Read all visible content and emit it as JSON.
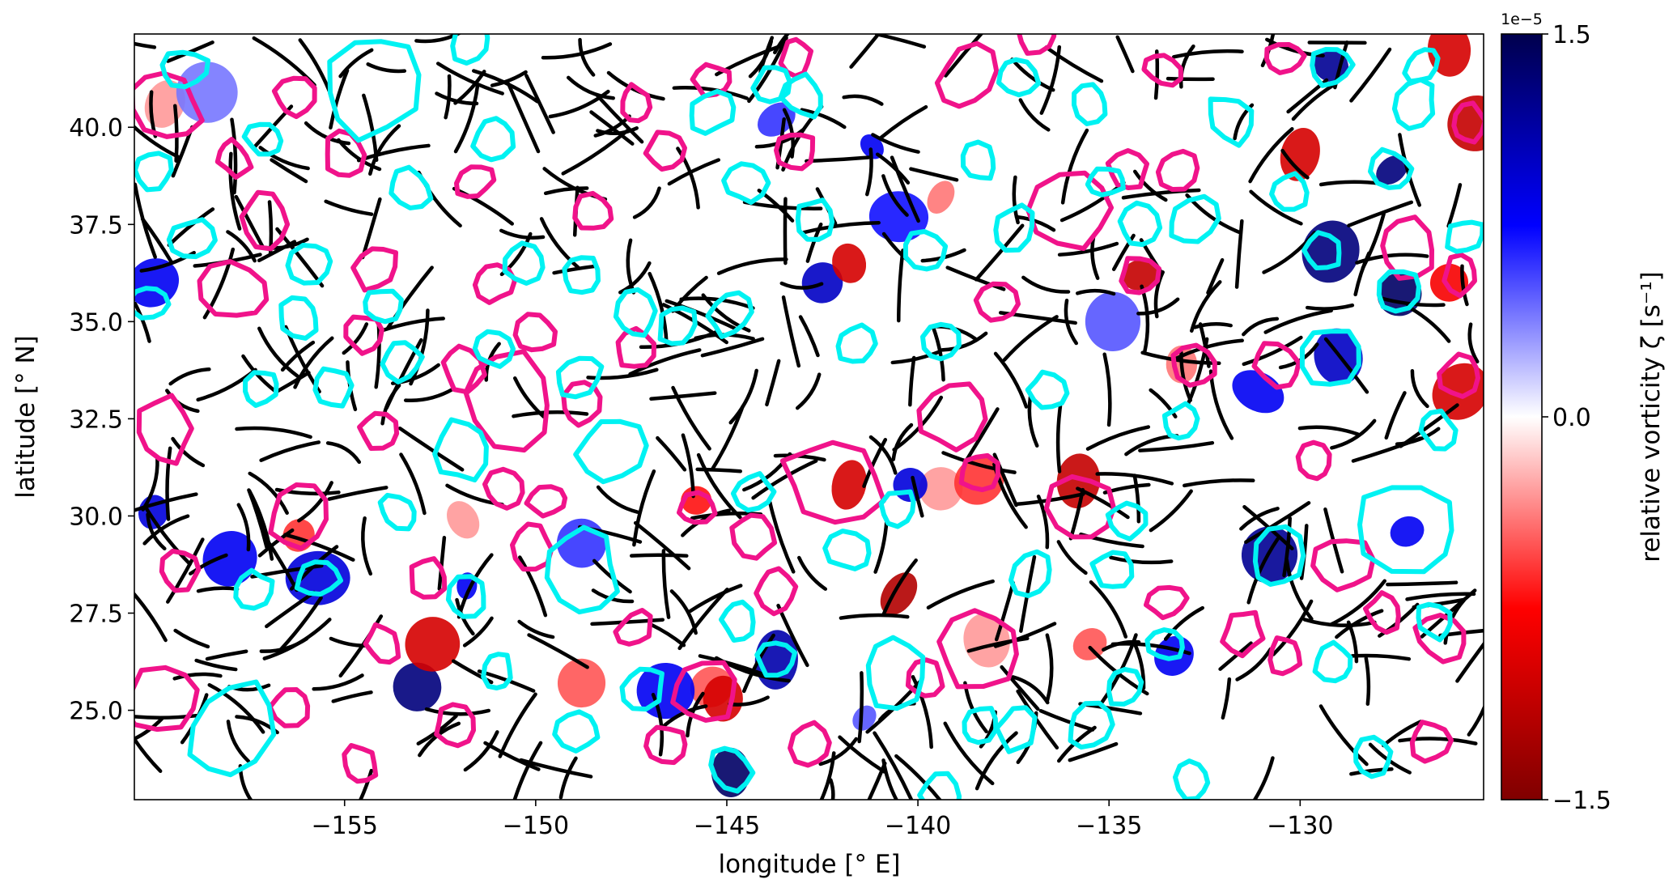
{
  "chart_data": {
    "type": "heatmap",
    "title": "",
    "xlabel": "longitude [° E]",
    "ylabel": "latitude [° N]",
    "xlim": [
      -160.5,
      -125.2
    ],
    "ylim": [
      22.7,
      42.4
    ],
    "xticks": [
      -155,
      -150,
      -145,
      -140,
      -135,
      -130
    ],
    "xtick_labels": [
      "−155",
      "−150",
      "−145",
      "−140",
      "−135",
      "−130"
    ],
    "yticks": [
      25.0,
      27.5,
      30.0,
      32.5,
      35.0,
      37.5,
      40.0
    ],
    "ytick_labels": [
      "25.0",
      "27.5",
      "30.0",
      "32.5",
      "35.0",
      "37.5",
      "40.0"
    ],
    "grid": false,
    "colorbar": {
      "label": "relative vorticity ζ [s⁻¹]",
      "offset_text": "1e−5",
      "range": [
        -1.5,
        1.5
      ],
      "ticks": [
        1.5,
        0.0,
        -1.5
      ],
      "tick_labels": [
        "1.5",
        "0.0",
        "−1.5"
      ],
      "colormap": "seismic (blue positive, red negative)"
    },
    "colors": {
      "cyclonic_contour": "#00f2f2",
      "anticyclonic_contour": "#f0138a",
      "streamlines": "#000000"
    },
    "cyan_contours_lonlat": [
      [
        -154.3,
        41.1,
        1.2
      ],
      [
        -151.7,
        42.2
      ],
      [
        -159.2,
        41.5
      ],
      [
        -157.1,
        39.7
      ],
      [
        -160.0,
        38.9
      ],
      [
        -159.0,
        37.1
      ],
      [
        -155.9,
        36.5
      ],
      [
        -160.1,
        35.5
      ],
      [
        -156.2,
        35.1
      ],
      [
        -154.0,
        35.4
      ],
      [
        -153.3,
        38.4
      ],
      [
        -151.1,
        39.7
      ],
      [
        -150.3,
        36.5
      ],
      [
        -151.1,
        34.3
      ],
      [
        -153.5,
        34.0
      ],
      [
        -155.3,
        33.3
      ],
      [
        -157.2,
        33.3
      ],
      [
        -151.9,
        31.7,
        0.8
      ],
      [
        -148.9,
        33.6
      ],
      [
        -148.8,
        36.2
      ],
      [
        -147.4,
        35.2
      ],
      [
        -148.0,
        31.7,
        0.9
      ],
      [
        -148.8,
        28.6,
        0.9
      ],
      [
        -153.6,
        30.1
      ],
      [
        -155.7,
        28.4
      ],
      [
        -157.4,
        28.1
      ],
      [
        -151.8,
        27.9
      ],
      [
        -151.0,
        26.0
      ],
      [
        -148.9,
        24.5
      ],
      [
        -147.2,
        25.6
      ],
      [
        -158.0,
        24.5,
        1.3
      ],
      [
        -144.9,
        23.5
      ],
      [
        -144.7,
        27.3
      ],
      [
        -143.7,
        26.3
      ],
      [
        -144.3,
        30.6
      ],
      [
        -141.8,
        29.1
      ],
      [
        -140.5,
        30.2
      ],
      [
        -140.6,
        26.0,
        0.8
      ],
      [
        -141.6,
        34.4
      ],
      [
        -139.4,
        34.5
      ],
      [
        -139.8,
        36.8
      ],
      [
        -142.7,
        37.6
      ],
      [
        -144.5,
        38.6
      ],
      [
        -145.4,
        40.4
      ],
      [
        -143.8,
        41.1
      ],
      [
        -143.0,
        40.8
      ],
      [
        -146.3,
        34.9
      ],
      [
        -144.9,
        35.2
      ],
      [
        -138.4,
        39.1
      ],
      [
        -137.5,
        37.4
      ],
      [
        -137.4,
        41.3
      ],
      [
        -135.5,
        40.6
      ],
      [
        -135.1,
        38.6
      ],
      [
        -134.2,
        37.5
      ],
      [
        -132.8,
        37.6,
        0.7
      ],
      [
        -136.6,
        33.2
      ],
      [
        -133.1,
        32.4
      ],
      [
        -134.5,
        29.9
      ],
      [
        -134.9,
        28.6
      ],
      [
        -137.0,
        28.5
      ],
      [
        -133.5,
        26.7
      ],
      [
        -134.6,
        25.6
      ],
      [
        -135.5,
        24.6
      ],
      [
        -138.4,
        24.6
      ],
      [
        -137.4,
        24.5
      ],
      [
        -139.4,
        22.8
      ],
      [
        -132.8,
        23.2
      ],
      [
        -130.6,
        28.9,
        0.8
      ],
      [
        -129.2,
        34.1,
        0.8
      ],
      [
        -127.2,
        29.7,
        1.2
      ],
      [
        -127.6,
        38.9
      ],
      [
        -127.4,
        35.8
      ],
      [
        -129.4,
        36.8
      ],
      [
        -129.2,
        41.6
      ],
      [
        -126.8,
        41.6
      ],
      [
        -127.0,
        40.6
      ],
      [
        -126.4,
        32.2
      ],
      [
        -125.7,
        37.2
      ],
      [
        -130.3,
        38.3
      ],
      [
        -131.8,
        40.2,
        0.7
      ],
      [
        -129.1,
        26.2
      ],
      [
        -128.1,
        23.8
      ],
      [
        -126.5,
        27.3
      ]
    ],
    "magenta_contours_lonlat": [
      [
        -159.7,
        40.6,
        0.8
      ],
      [
        -156.3,
        40.8
      ],
      [
        -157.9,
        39.2
      ],
      [
        -155.0,
        39.3
      ],
      [
        -157.1,
        37.6,
        0.7
      ],
      [
        -157.9,
        35.8,
        0.9
      ],
      [
        -154.2,
        36.4
      ],
      [
        -154.5,
        34.7
      ],
      [
        -150.7,
        33.0,
        1.1
      ],
      [
        -154.1,
        32.2
      ],
      [
        -159.7,
        32.2,
        0.7
      ],
      [
        -156.2,
        30.0,
        0.8
      ],
      [
        -159.3,
        28.6
      ],
      [
        -152.8,
        28.4
      ],
      [
        -154.0,
        26.7
      ],
      [
        -156.4,
        25.1
      ],
      [
        -154.6,
        23.6
      ],
      [
        -152.1,
        24.6
      ],
      [
        -159.8,
        25.3,
        1.0
      ],
      [
        -151.6,
        38.6
      ],
      [
        -148.5,
        37.8
      ],
      [
        -151.1,
        36.0
      ],
      [
        -150.0,
        34.7
      ],
      [
        -151.9,
        33.8
      ],
      [
        -148.8,
        32.9
      ],
      [
        -150.8,
        30.7
      ],
      [
        -149.7,
        30.4
      ],
      [
        -150.1,
        29.2
      ],
      [
        -147.4,
        34.3
      ],
      [
        -147.4,
        27.1
      ],
      [
        -146.6,
        24.1
      ],
      [
        -145.6,
        25.5,
        0.8
      ],
      [
        -145.8,
        30.2
      ],
      [
        -144.3,
        29.5
      ],
      [
        -143.7,
        28.1
      ],
      [
        -142.8,
        24.1
      ],
      [
        -142.2,
        30.9,
        1.3
      ],
      [
        -139.8,
        25.8
      ],
      [
        -138.4,
        26.6,
        1.0
      ],
      [
        -139.1,
        32.6,
        0.8
      ],
      [
        -138.4,
        31.1
      ],
      [
        -137.9,
        35.5
      ],
      [
        -136.0,
        37.9,
        1.0
      ],
      [
        -143.2,
        39.4
      ],
      [
        -145.4,
        41.2
      ],
      [
        -147.4,
        40.6
      ],
      [
        -146.6,
        39.4
      ],
      [
        -143.2,
        41.8
      ],
      [
        -138.7,
        41.3,
        0.7
      ],
      [
        -136.9,
        42.4
      ],
      [
        -134.5,
        38.9
      ],
      [
        -133.2,
        38.9
      ],
      [
        -133.6,
        41.5
      ],
      [
        -130.4,
        41.8
      ],
      [
        -134.2,
        36.2
      ],
      [
        -132.8,
        33.9
      ],
      [
        -130.6,
        33.9
      ],
      [
        -135.7,
        30.2,
        0.9
      ],
      [
        -129.6,
        31.4
      ],
      [
        -128.9,
        28.8,
        0.7
      ],
      [
        -133.5,
        27.8
      ],
      [
        -131.5,
        27.0
      ],
      [
        -130.4,
        26.4
      ],
      [
        -127.8,
        27.5
      ],
      [
        -126.3,
        26.9,
        0.7
      ],
      [
        -127.2,
        36.9,
        0.7
      ],
      [
        -125.8,
        36.2
      ],
      [
        -125.6,
        40.1
      ],
      [
        -125.8,
        33.6
      ],
      [
        -126.6,
        24.2
      ]
    ],
    "vorticity_patches_lonlat_value": [
      [
        -159.7,
        40.6,
        -0.3
      ],
      [
        -158.6,
        40.9,
        0.4
      ],
      [
        -129.2,
        41.6,
        1.2
      ],
      [
        -125.4,
        40.1,
        -1.1
      ],
      [
        -130.0,
        39.3,
        -1.0
      ],
      [
        -127.6,
        38.9,
        1.3
      ],
      [
        -129.2,
        36.8,
        1.3
      ],
      [
        -127.4,
        35.7,
        1.4
      ],
      [
        -134.2,
        36.2,
        -1.1
      ],
      [
        -129.0,
        34.1,
        1.0
      ],
      [
        -131.1,
        33.2,
        0.8
      ],
      [
        -133.1,
        33.9,
        -0.4
      ],
      [
        -125.8,
        33.2,
        -1.0
      ],
      [
        -127.2,
        29.6,
        0.8
      ],
      [
        -135.8,
        30.9,
        -1.1
      ],
      [
        -130.8,
        29.0,
        1.2
      ],
      [
        -140.5,
        28.0,
        -1.2
      ],
      [
        -142.5,
        36.0,
        1.0
      ],
      [
        -141.8,
        36.5,
        -1.0
      ],
      [
        -140.5,
        37.7,
        0.7
      ],
      [
        -139.4,
        38.2,
        -0.4
      ],
      [
        -141.2,
        39.5,
        0.8
      ],
      [
        -143.7,
        40.2,
        0.6
      ],
      [
        -145.4,
        25.6,
        -0.5
      ],
      [
        -148.8,
        25.7,
        -0.5
      ],
      [
        -145.1,
        25.3,
        -1.0
      ],
      [
        -144.9,
        23.4,
        1.4
      ],
      [
        -143.7,
        26.3,
        1.1
      ],
      [
        -146.6,
        25.5,
        0.8
      ],
      [
        -153.1,
        25.6,
        1.3
      ],
      [
        -152.7,
        26.7,
        -1.0
      ],
      [
        -155.7,
        28.4,
        0.9
      ],
      [
        -156.2,
        29.5,
        -0.6
      ],
      [
        -158.0,
        28.9,
        0.8
      ],
      [
        -160.0,
        30.1,
        0.9
      ],
      [
        -135.5,
        26.7,
        -0.5
      ],
      [
        -133.3,
        26.4,
        0.8
      ],
      [
        -138.2,
        26.8,
        -0.3
      ],
      [
        -141.4,
        24.8,
        0.5
      ],
      [
        -134.9,
        35.0,
        0.5
      ],
      [
        -160.0,
        36.0,
        0.8
      ],
      [
        -151.8,
        28.2,
        0.8
      ],
      [
        -148.8,
        29.3,
        0.6
      ],
      [
        -139.4,
        30.7,
        -0.3
      ],
      [
        -141.8,
        30.8,
        -1.0
      ],
      [
        -140.2,
        30.8,
        0.9
      ],
      [
        -126.1,
        36.0,
        -0.8
      ],
      [
        -151.9,
        29.9,
        -0.3
      ],
      [
        -145.8,
        30.4,
        -0.7
      ],
      [
        -138.4,
        30.9,
        -0.6
      ],
      [
        -126.1,
        42.0,
        -1.0
      ]
    ]
  }
}
